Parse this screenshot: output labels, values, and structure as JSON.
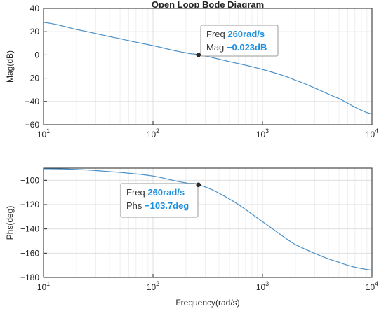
{
  "chart_data": [
    {
      "type": "line",
      "title": "Open Loop Bode Diagram",
      "xlabel": "",
      "ylabel": "Mag(dB)",
      "xscale": "log",
      "xlim": [
        10,
        10000
      ],
      "ylim": [
        -60,
        40
      ],
      "grid": true,
      "x_ticks": [
        {
          "base": "10",
          "exp": "1",
          "value": 10
        },
        {
          "base": "10",
          "exp": "2",
          "value": 100
        },
        {
          "base": "10",
          "exp": "3",
          "value": 1000
        },
        {
          "base": "10",
          "exp": "4",
          "value": 10000
        }
      ],
      "y_ticks": [
        {
          "label": "40",
          "value": 40
        },
        {
          "label": "20",
          "value": 20
        },
        {
          "label": "0",
          "value": 0
        },
        {
          "label": "−20",
          "value": -20
        },
        {
          "label": "−40",
          "value": -40
        },
        {
          "label": "−60",
          "value": -60
        }
      ],
      "series": [
        {
          "color": "#4a90c8",
          "x": [
            10,
            20,
            50,
            100,
            200,
            260,
            500,
            1000,
            2000,
            5000,
            10000
          ],
          "y": [
            28.0,
            21.9,
            14.0,
            8.0,
            1.9,
            -0.02,
            -5.8,
            -12.5,
            -21.8,
            -37.5,
            -50.8
          ]
        }
      ],
      "marker": {
        "x": 260,
        "y": -0.023,
        "lines": [
          {
            "key": "Freq",
            "value": "260rad/s"
          },
          {
            "key": "Mag",
            "value": "−0.023dB"
          }
        ]
      }
    },
    {
      "type": "line",
      "title": "",
      "xlabel": "Frequency(rad/s)",
      "ylabel": "Phs(deg)",
      "xscale": "log",
      "xlim": [
        10,
        10000
      ],
      "ylim": [
        -180,
        -90
      ],
      "grid": true,
      "x_ticks": [
        {
          "base": "10",
          "exp": "1",
          "value": 10
        },
        {
          "base": "10",
          "exp": "2",
          "value": 100
        },
        {
          "base": "10",
          "exp": "3",
          "value": 1000
        },
        {
          "base": "10",
          "exp": "4",
          "value": 10000
        }
      ],
      "y_ticks": [
        {
          "label": "−100",
          "value": -100
        },
        {
          "label": "−120",
          "value": -120
        },
        {
          "label": "−140",
          "value": -140
        },
        {
          "label": "−160",
          "value": -160
        },
        {
          "label": "−180",
          "value": -180
        }
      ],
      "series": [
        {
          "color": "#4a90c8",
          "x": [
            10,
            20,
            50,
            100,
            200,
            260,
            500,
            1000,
            2000,
            5000,
            10000
          ],
          "y": [
            -90.5,
            -91.1,
            -93.5,
            -96.5,
            -102.1,
            -103.7,
            -115.5,
            -134.0,
            -153.0,
            -167.5,
            -174.0
          ]
        }
      ],
      "marker": {
        "x": 260,
        "y": -103.7,
        "lines": [
          {
            "key": "Freq",
            "value": "260rad/s"
          },
          {
            "key": "Phs",
            "value": "−103.7deg"
          }
        ]
      }
    }
  ]
}
